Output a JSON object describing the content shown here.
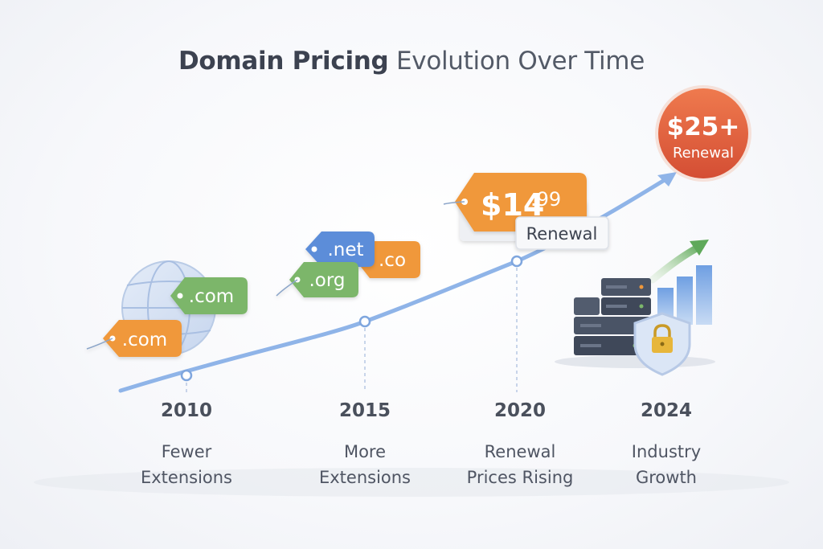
{
  "title": {
    "bold": "Domain Pricing",
    "rest": "Evolution Over Time"
  },
  "milestones": [
    {
      "year": "2010",
      "line1": "Fewer",
      "line2": "Extensions"
    },
    {
      "year": "2015",
      "line1": "More",
      "line2": "Extensions"
    },
    {
      "year": "2020",
      "line1": "Renewal",
      "line2": "Prices Rising"
    },
    {
      "year": "2024",
      "line1": "Industry",
      "line2": "Growth"
    }
  ],
  "tags": {
    "com_green": ".com",
    "com_orange": ".com",
    "net": ".net",
    "org": ".org",
    "co": ".co"
  },
  "price_tag": {
    "dollar_whole": "$14",
    "cents": ".99",
    "label": "Renewal"
  },
  "badge": {
    "amount": "$25+",
    "label": "Renewal"
  },
  "colors": {
    "orange": "#f0983a",
    "green": "#7cb66b",
    "blue": "#5b8dd9",
    "red_badge": "#e05a3a",
    "curve": "#8fb4e8",
    "text_dark": "#3d4350"
  }
}
